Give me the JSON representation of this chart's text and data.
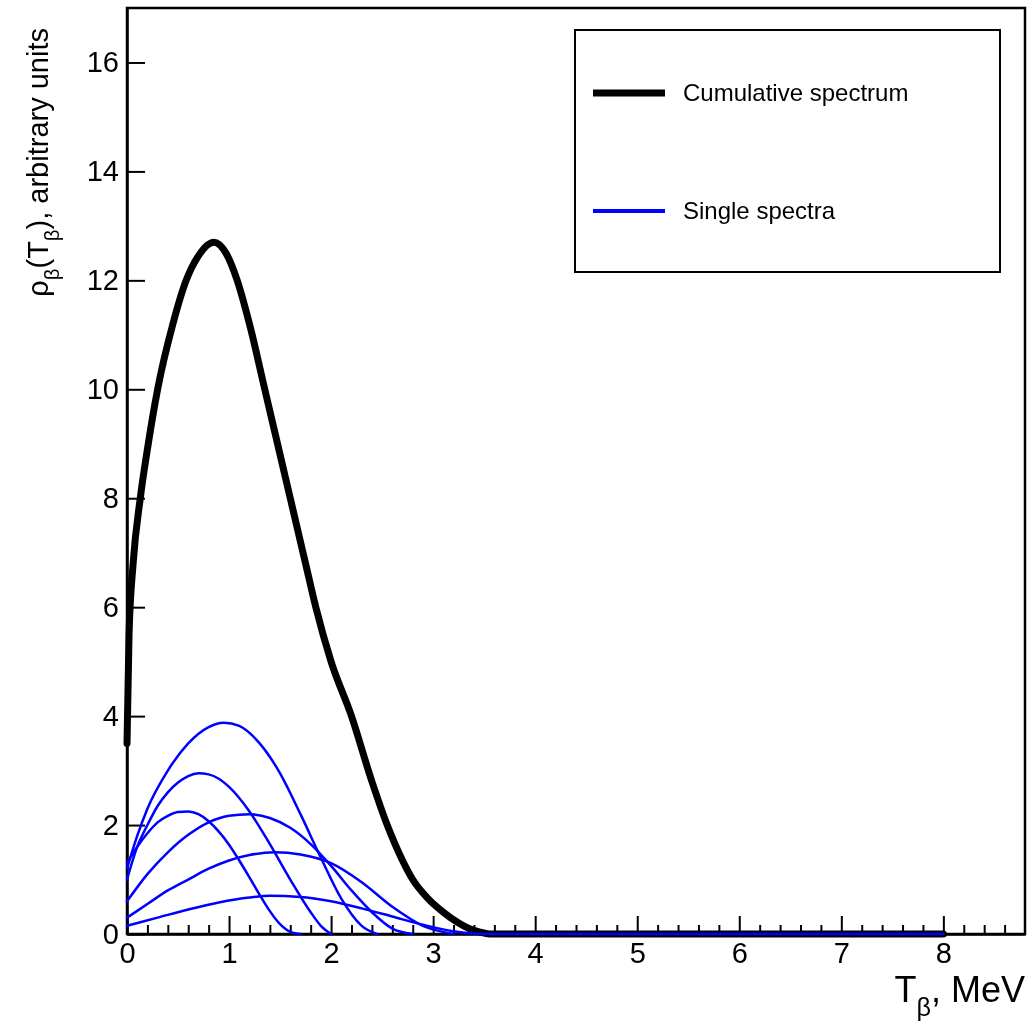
{
  "chart_data": {
    "type": "line",
    "xlabel": "T$_{β}$, MeV",
    "ylabel": "ρ$_{β}$(T$_{β}$), arbitrary units",
    "xlim": [
      0,
      8.8
    ],
    "ylim": [
      0,
      17
    ],
    "xticks": [
      0,
      {
        "value": 0.2,
        "label": null
      },
      {
        "value": 0.4,
        "label": null
      },
      {
        "value": 0.6,
        "label": null
      },
      {
        "value": 0.8,
        "label": null
      },
      1,
      {
        "value": 1.2,
        "label": null
      },
      {
        "value": 1.4,
        "label": null
      },
      {
        "value": 1.6,
        "label": null
      },
      {
        "value": 1.8,
        "label": null
      },
      2,
      {
        "value": 2.2,
        "label": null
      },
      {
        "value": 2.4,
        "label": null
      },
      {
        "value": 2.6,
        "label": null
      },
      {
        "value": 2.8,
        "label": null
      },
      3,
      {
        "value": 3.2,
        "label": null
      },
      {
        "value": 3.4,
        "label": null
      },
      {
        "value": 3.6,
        "label": null
      },
      {
        "value": 3.8,
        "label": null
      },
      4,
      {
        "value": 4.2,
        "label": null
      },
      {
        "value": 4.4,
        "label": null
      },
      {
        "value": 4.6,
        "label": null
      },
      {
        "value": 4.8,
        "label": null
      },
      5,
      {
        "value": 5.2,
        "label": null
      },
      {
        "value": 5.4,
        "label": null
      },
      {
        "value": 5.6,
        "label": null
      },
      {
        "value": 5.8,
        "label": null
      },
      6,
      {
        "value": 6.2,
        "label": null
      },
      {
        "value": 6.4,
        "label": null
      },
      {
        "value": 6.6,
        "label": null
      },
      {
        "value": 6.8,
        "label": null
      },
      7,
      {
        "value": 7.2,
        "label": null
      },
      {
        "value": 7.4,
        "label": null
      },
      {
        "value": 7.6,
        "label": null
      },
      {
        "value": 7.8,
        "label": null
      },
      8,
      {
        "value": 8.2,
        "label": null
      },
      {
        "value": 8.4,
        "label": null
      },
      {
        "value": 8.6,
        "label": null
      }
    ],
    "yticks": [
      0,
      2,
      4,
      6,
      8,
      10,
      12,
      14,
      16
    ],
    "legend": "top right",
    "grid": false,
    "series": [
      {
        "name": "Cumulative spectrum",
        "color": "#000000",
        "x": [
          0,
          0.02,
          0.06,
          0.13,
          0.2,
          0.3,
          0.45,
          0.58,
          0.7,
          0.85,
          0.97,
          1.08,
          1.2,
          1.35,
          1.5,
          1.6,
          1.75,
          1.85,
          2.0,
          2.2,
          2.4,
          2.55,
          2.7,
          2.8,
          2.95,
          3.1,
          3.25,
          3.35,
          3.45,
          3.55,
          4,
          5,
          6,
          7,
          8
        ],
        "values": [
          3.5,
          5.5,
          6.8,
          8,
          8.9,
          10,
          11.2,
          12,
          12.45,
          12.7,
          12.5,
          12,
          11.2,
          10,
          8.8,
          8,
          6.8,
          6,
          5,
          4,
          2.8,
          2,
          1.35,
          1,
          0.65,
          0.4,
          0.2,
          0.1,
          0.04,
          0,
          0,
          0,
          0,
          0,
          0
        ]
      },
      {
        "name": "Single spectra",
        "color": "#0000ff",
        "x": [
          0,
          0.1,
          0.2,
          0.3,
          0.4,
          0.5,
          0.6,
          0.7,
          0.8,
          0.9,
          1.0,
          1.1,
          1.2,
          1.3,
          1.4,
          1.5,
          1.6,
          1.7
        ],
        "values": [
          1.3,
          1.6,
          1.85,
          2.05,
          2.17,
          2.24,
          2.25,
          2.2,
          2.07,
          1.88,
          1.64,
          1.35,
          1.04,
          0.72,
          0.42,
          0.18,
          0.04,
          0
        ]
      },
      {
        "color": "#0000ff",
        "x": [
          0,
          0.1,
          0.2,
          0.3,
          0.4,
          0.5,
          0.6,
          0.7,
          0.8,
          0.9,
          1.0,
          1.2,
          1.4,
          1.6,
          1.8,
          1.9,
          2.0
        ],
        "values": [
          1.0,
          1.6,
          2.0,
          2.35,
          2.6,
          2.78,
          2.9,
          2.95,
          2.93,
          2.85,
          2.7,
          2.25,
          1.65,
          1.0,
          0.4,
          0.15,
          0
        ]
      },
      {
        "color": "#0000ff",
        "x": [
          0,
          0.1,
          0.2,
          0.4,
          0.6,
          0.8,
          0.95,
          1.1,
          1.3,
          1.5,
          1.7,
          1.9,
          2.1,
          2.3,
          2.45
        ],
        "values": [
          1.2,
          1.8,
          2.3,
          3.0,
          3.5,
          3.8,
          3.88,
          3.82,
          3.5,
          2.95,
          2.2,
          1.4,
          0.65,
          0.15,
          0
        ]
      },
      {
        "color": "#0000ff",
        "x": [
          0,
          0.2,
          0.4,
          0.6,
          0.8,
          1.0,
          1.2,
          1.4,
          1.6,
          1.8,
          2.0,
          2.2,
          2.4,
          2.6,
          2.8
        ],
        "values": [
          0.6,
          1.1,
          1.5,
          1.82,
          2.05,
          2.17,
          2.2,
          2.13,
          1.95,
          1.65,
          1.25,
          0.8,
          0.4,
          0.1,
          0
        ]
      },
      {
        "color": "#0000ff",
        "x": [
          0,
          0.2,
          0.4,
          0.6,
          0.8,
          1.0,
          1.2,
          1.45,
          1.7,
          2.0,
          2.3,
          2.6,
          2.9,
          3.2
        ],
        "values": [
          0.3,
          0.55,
          0.8,
          1.0,
          1.2,
          1.35,
          1.45,
          1.5,
          1.46,
          1.3,
          0.95,
          0.5,
          0.15,
          0
        ]
      },
      {
        "color": "#0000ff",
        "x": [
          0,
          0.3,
          0.6,
          0.9,
          1.2,
          1.4,
          1.7,
          2.0,
          2.3,
          2.6,
          2.9,
          3.2,
          3.5,
          4,
          5,
          6,
          7,
          8
        ],
        "values": [
          0.15,
          0.3,
          0.45,
          0.58,
          0.67,
          0.7,
          0.68,
          0.6,
          0.47,
          0.32,
          0.17,
          0.05,
          0,
          0,
          0,
          0,
          0,
          0
        ]
      }
    ]
  }
}
